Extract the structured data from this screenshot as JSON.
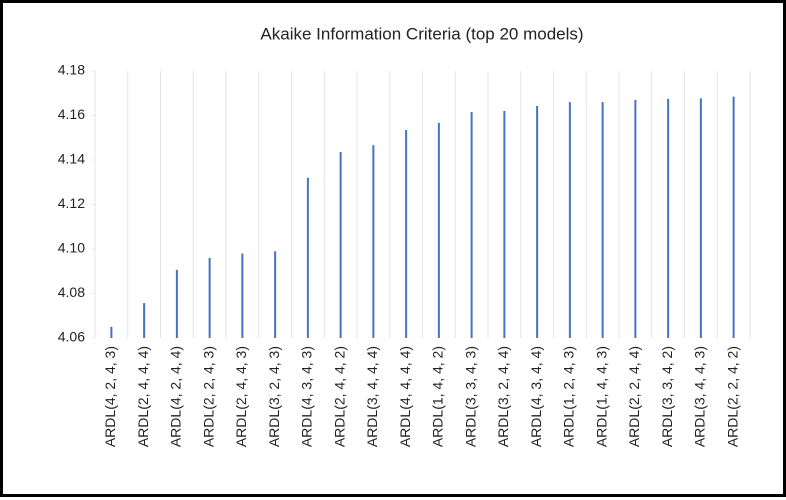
{
  "chart_data": {
    "type": "drop-line",
    "title": "Akaike Information Criteria (top 20 models)",
    "categories": [
      "ARDL(4, 2, 4, 3)",
      "ARDL(2, 4, 4, 4)",
      "ARDL(4, 2, 4, 4)",
      "ARDL(2, 2, 4, 3)",
      "ARDL(2, 4, 4, 3)",
      "ARDL(3, 2, 4, 3)",
      "ARDL(4, 3, 4, 3)",
      "ARDL(2, 4, 4, 2)",
      "ARDL(3, 4, 4, 4)",
      "ARDL(4, 4, 4, 4)",
      "ARDL(1, 4, 4, 2)",
      "ARDL(3, 3, 4, 3)",
      "ARDL(3, 2, 4, 4)",
      "ARDL(4, 3, 4, 4)",
      "ARDL(1, 2, 4, 3)",
      "ARDL(1, 4, 4, 3)",
      "ARDL(2, 2, 4, 4)",
      "ARDL(3, 3, 4, 2)",
      "ARDL(3, 4, 4, 3)",
      "ARDL(2, 2, 4, 2)"
    ],
    "values": [
      4.065,
      4.0757,
      4.0906,
      4.096,
      4.098,
      4.099,
      4.132,
      4.1436,
      4.1467,
      4.1535,
      4.1567,
      4.1616,
      4.162,
      4.1643,
      4.166,
      4.166,
      4.167,
      4.1675,
      4.1677,
      4.1685
    ],
    "color": "#4472c4",
    "ylim": [
      4.06,
      4.18
    ],
    "yticks": [
      4.06,
      4.08,
      {
        "value": 4.1,
        "label": "4.10"
      },
      4.12,
      4.14,
      4.16,
      4.18
    ]
  }
}
